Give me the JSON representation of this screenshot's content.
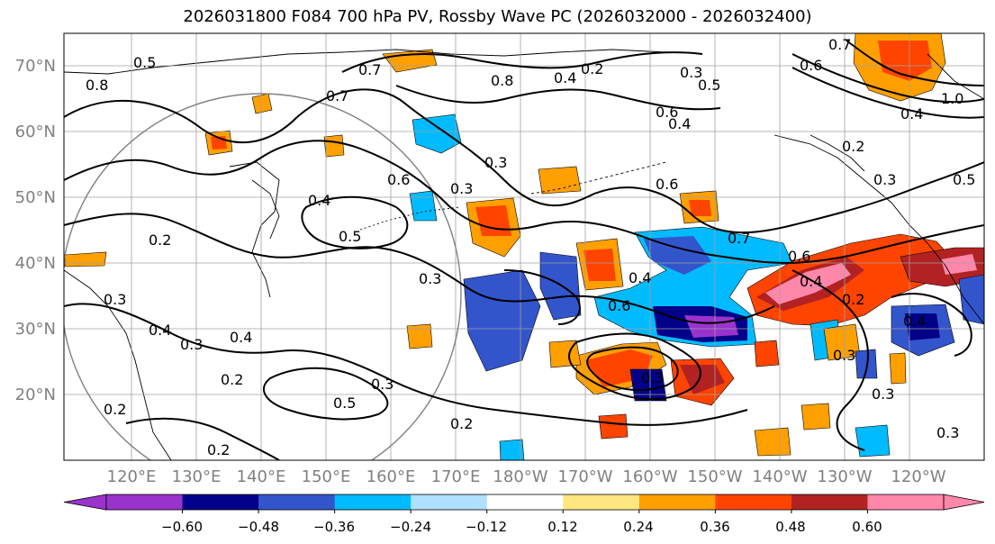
{
  "title": "2026031800 F084 700 hPa PV, Rossby Wave PC (2026032000 - 2026032400)",
  "latitude_labels": [
    "70°N",
    "60°N",
    "50°N",
    "40°N",
    "30°N",
    "20°N"
  ],
  "longitude_labels": [
    "120°E",
    "130°E",
    "140°E",
    "150°E",
    "160°E",
    "170°E",
    "180°W",
    "170°W",
    "160°W",
    "150°W",
    "140°W",
    "130°W",
    "120°W"
  ],
  "colorbar": {
    "ticks": [
      "−0.60",
      "−0.48",
      "−0.36",
      "−0.24",
      "−0.12",
      "0.12",
      "0.24",
      "0.36",
      "0.48",
      "0.60"
    ],
    "colors": [
      "#9933cc",
      "#000088",
      "#3355cc",
      "#00bbff",
      "#b0e0ff",
      "#ffffff",
      "#ffe680",
      "#ffa000",
      "#ff4400",
      "#b22222",
      "#ff88aa"
    ],
    "extend": "both"
  },
  "contour_labels": [
    "0.7",
    "0.8",
    "0.5",
    "0.7",
    "0.8",
    "0.2",
    "0.4",
    "0.3",
    "0.5",
    "0.6",
    "0.4",
    "0.6",
    "0.7",
    "0.3",
    "1.0",
    "0.4",
    "0.2",
    "0.3",
    "0.5",
    "0.4",
    "0.6",
    "0.3",
    "0.5",
    "0.6",
    "0.7",
    "0.6",
    "0.4",
    "0.4",
    "0.3",
    "0.2",
    "0.6",
    "0.2",
    "0.4",
    "0.3",
    "0.4",
    "0.3",
    "0.4",
    "0.2",
    "0.3",
    "0.5",
    "0.2",
    "0.2",
    "0.2",
    "0.3",
    "0.3",
    "0.3",
    "0.3"
  ]
}
